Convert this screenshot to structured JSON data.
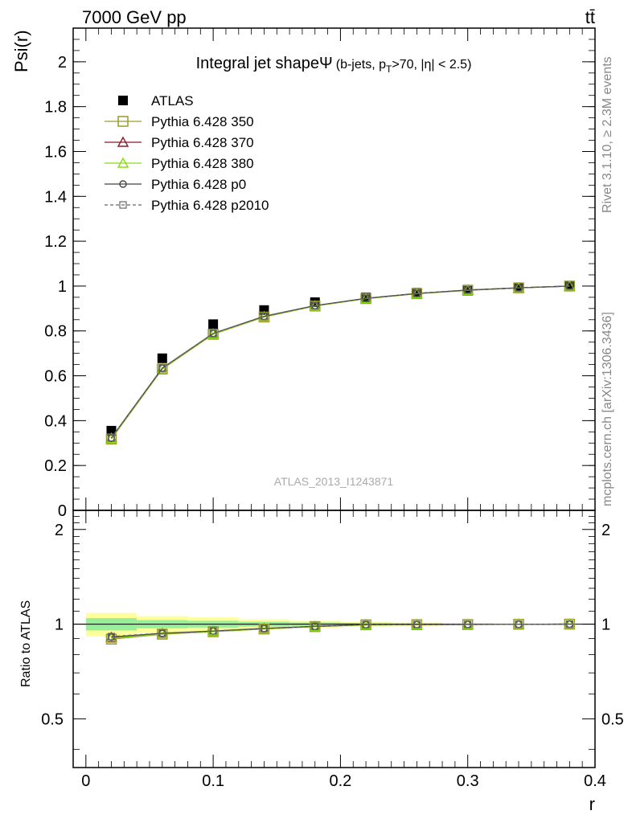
{
  "header": {
    "energy_label": "7000 GeV pp",
    "process_label": "tt̄",
    "title_main": "Integral jet shape",
    "title_symbol": "Ψ",
    "title_cuts": "(b-jets, p",
    "title_cuts_sub": "T",
    "title_cuts_tail": ">70, |η| < 2.5)",
    "rivet_label": "Rivet 3.1.10, ≥ 2.3M events",
    "mcplots_label": "mcplots.cern.ch [arXiv:1306.3436]",
    "analysis_label": "ATLAS_2013_I1243871"
  },
  "chart_data": [
    {
      "type": "line",
      "panel": "main",
      "ylabel": "Psi(r)",
      "xlim": [
        -0.01,
        0.4
      ],
      "ylim": [
        0,
        2.15
      ],
      "y_ticks": [
        0,
        0.2,
        0.4,
        0.6,
        0.8,
        1,
        1.2,
        1.4,
        1.6,
        1.8,
        2
      ],
      "y_tick_labels": [
        "0",
        "0.2",
        "0.4",
        "0.6",
        "0.8",
        "1",
        "1.2",
        "1.4",
        "1.6",
        "1.8",
        "2"
      ],
      "x": [
        0.02,
        0.06,
        0.1,
        0.14,
        0.18,
        0.22,
        0.26,
        0.3,
        0.34,
        0.38
      ],
      "series": [
        {
          "name": "ATLAS",
          "color": "#000000",
          "style": "data",
          "values": [
            0.355,
            0.678,
            0.83,
            0.893,
            0.928,
            0.949,
            0.97,
            0.984,
            0.993,
            1.0
          ]
        },
        {
          "name": "Pythia 6.428 350",
          "color": "#9a9a2a",
          "style": "open-square",
          "values": [
            0.318,
            0.63,
            0.785,
            0.862,
            0.911,
            0.944,
            0.966,
            0.981,
            0.992,
            1.0
          ]
        },
        {
          "name": "Pythia 6.428 370",
          "color": "#8b1a2a",
          "style": "open-triangle",
          "values": [
            0.322,
            0.633,
            0.787,
            0.864,
            0.912,
            0.945,
            0.967,
            0.982,
            0.992,
            1.0
          ]
        },
        {
          "name": "Pythia 6.428 380",
          "color": "#88dd11",
          "style": "open-triangle",
          "values": [
            0.32,
            0.632,
            0.786,
            0.863,
            0.911,
            0.944,
            0.966,
            0.981,
            0.992,
            1.0
          ]
        },
        {
          "name": "Pythia 6.428 p0",
          "color": "#444444",
          "style": "open-circle",
          "values": [
            0.323,
            0.634,
            0.789,
            0.865,
            0.913,
            0.945,
            0.967,
            0.982,
            0.992,
            1.0
          ]
        },
        {
          "name": "Pythia 6.428 p2010",
          "color": "#666666",
          "style": "dashed-square",
          "values": [
            0.324,
            0.635,
            0.789,
            0.866,
            0.913,
            0.946,
            0.967,
            0.982,
            0.992,
            1.0
          ]
        }
      ]
    },
    {
      "type": "line",
      "panel": "ratio",
      "ylabel": "Ratio to ATLAS",
      "xlabel": "r",
      "xlim": [
        -0.01,
        0.4
      ],
      "ylim": [
        0.35,
        2.3
      ],
      "y_scale": "log",
      "y_ticks": [
        0.5,
        1,
        2
      ],
      "y_tick_labels": [
        "0.5",
        "1",
        "2"
      ],
      "x_ticks": [
        0,
        0.1,
        0.2,
        0.3,
        0.4
      ],
      "x_tick_labels": [
        "0",
        "0.1",
        "0.2",
        "0.3",
        "0.4"
      ],
      "x": [
        0.02,
        0.06,
        0.1,
        0.14,
        0.18,
        0.22,
        0.26,
        0.3,
        0.34,
        0.38
      ],
      "bin_edges": [
        0,
        0.04,
        0.08,
        0.12,
        0.16,
        0.2,
        0.24,
        0.28,
        0.32,
        0.36,
        0.4
      ],
      "band_stat": [
        0.045,
        0.03,
        0.025,
        0.018,
        0.013,
        0.01,
        0.008,
        0.005,
        0.003,
        0.0
      ],
      "band_total": [
        0.085,
        0.06,
        0.05,
        0.035,
        0.025,
        0.018,
        0.012,
        0.008,
        0.005,
        0.0
      ],
      "series": [
        {
          "name": "Pythia 6.428 350",
          "color": "#9a9a2a",
          "style": "open-square",
          "values": [
            0.896,
            0.929,
            0.946,
            0.965,
            0.982,
            0.995,
            0.996,
            0.997,
            0.999,
            1.0
          ]
        },
        {
          "name": "Pythia 6.428 370",
          "color": "#8b1a2a",
          "style": "open-triangle",
          "values": [
            0.907,
            0.934,
            0.948,
            0.968,
            0.983,
            0.996,
            0.997,
            0.998,
            0.999,
            1.0
          ]
        },
        {
          "name": "Pythia 6.428 380",
          "color": "#88dd11",
          "style": "open-triangle",
          "values": [
            0.901,
            0.932,
            0.947,
            0.966,
            0.982,
            0.995,
            0.996,
            0.997,
            0.999,
            1.0
          ]
        },
        {
          "name": "Pythia 6.428 p0",
          "color": "#444444",
          "style": "open-circle",
          "values": [
            0.91,
            0.935,
            0.951,
            0.969,
            0.984,
            0.996,
            0.997,
            0.998,
            0.999,
            1.0
          ]
        },
        {
          "name": "Pythia 6.428 p2010",
          "color": "#666666",
          "style": "dashed-square",
          "values": [
            0.913,
            0.937,
            0.951,
            0.97,
            0.984,
            0.997,
            0.997,
            0.998,
            0.999,
            1.0
          ]
        }
      ]
    }
  ]
}
